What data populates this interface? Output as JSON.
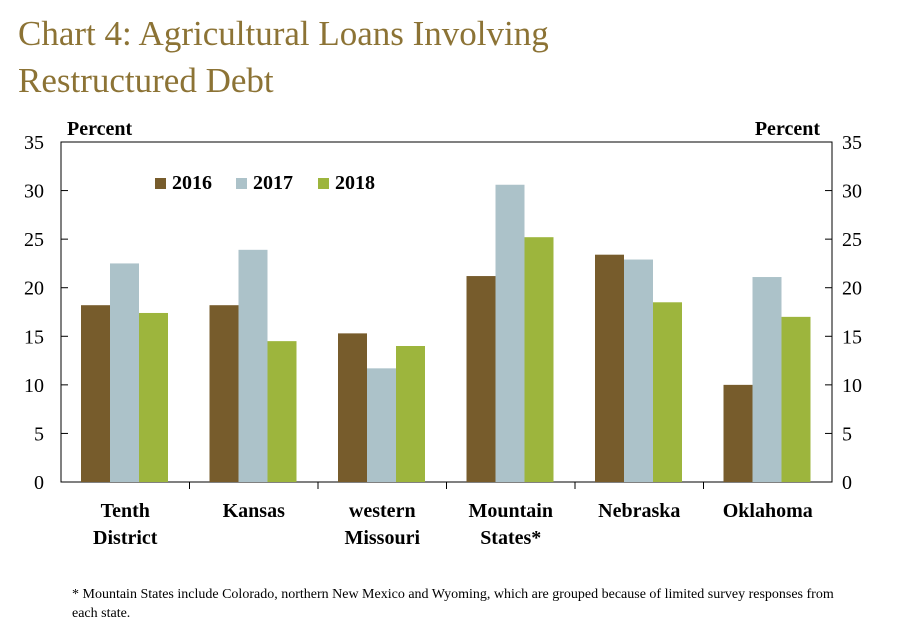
{
  "title_lines": [
    "Chart 4: Agricultural Loans Involving",
    "Restructured Debt"
  ],
  "footnote": "* Mountain States include Colorado, northern New Mexico and Wyoming, which are grouped because of limited survey responses from each state.",
  "chart_data": {
    "type": "bar",
    "ylabel_left": "Percent",
    "ylabel_right": "Percent",
    "ylim": [
      0,
      35
    ],
    "yticks": [
      0,
      5,
      10,
      15,
      20,
      25,
      30,
      35
    ],
    "grid": false,
    "legend_position": "top-left",
    "categories": [
      [
        "Tenth",
        "District"
      ],
      [
        "Kansas"
      ],
      [
        "western",
        "Missouri"
      ],
      [
        "Mountain",
        "States*"
      ],
      [
        "Nebraska"
      ],
      [
        "Oklahoma"
      ]
    ],
    "series": [
      {
        "name": "2016",
        "color": "#775c2c",
        "values": [
          18.2,
          18.2,
          15.3,
          21.2,
          23.4,
          10.0
        ]
      },
      {
        "name": "2017",
        "color": "#acc2c9",
        "values": [
          22.5,
          23.9,
          11.7,
          30.6,
          22.9,
          21.1
        ]
      },
      {
        "name": "2018",
        "color": "#9db53d",
        "values": [
          17.4,
          14.5,
          14.0,
          25.2,
          18.5,
          17.0
        ]
      }
    ]
  }
}
